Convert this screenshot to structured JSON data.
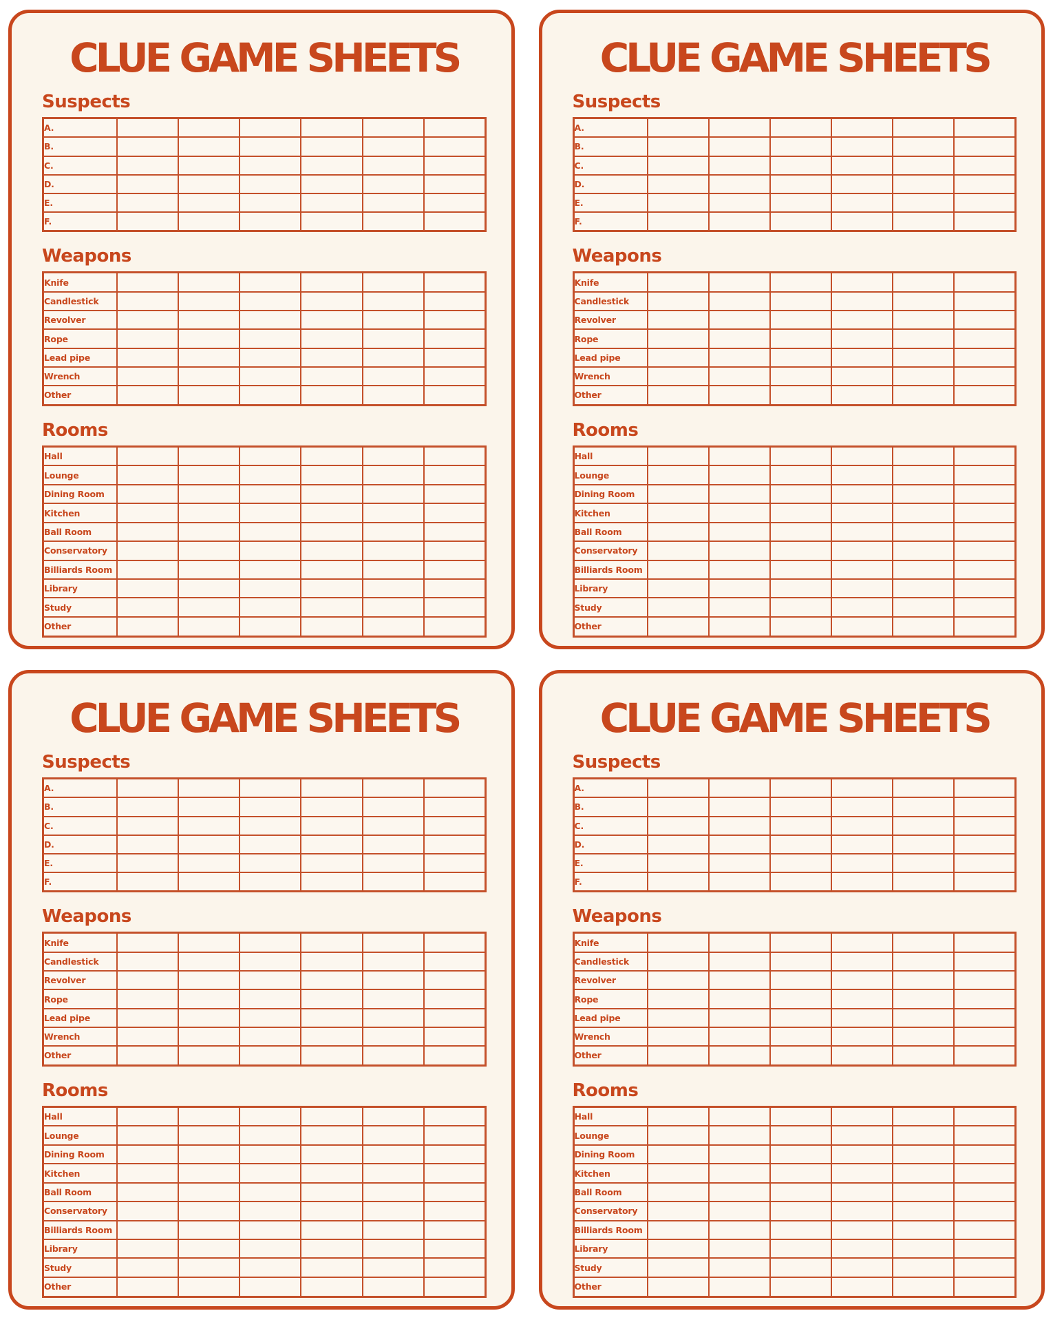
{
  "page": {
    "background_color": "#FFFFFF"
  },
  "colors": {
    "accent": "#C8471D",
    "grid_line": "#C4502A",
    "card_background": "#FBF5EB"
  },
  "sheet_count": 4,
  "sheet": {
    "title": "CLUE GAME SHEETS",
    "sections": [
      {
        "heading": "Suspects",
        "data_columns": 6,
        "rows": [
          "A.",
          "B.",
          "C.",
          "D.",
          "E.",
          "F."
        ]
      },
      {
        "heading": "Weapons",
        "data_columns": 6,
        "rows": [
          "Knife",
          "Candlestick",
          "Revolver",
          "Rope",
          "Lead pipe",
          "Wrench",
          "Other"
        ]
      },
      {
        "heading": "Rooms",
        "data_columns": 6,
        "rows": [
          "Hall",
          "Lounge",
          "Dining Room",
          "Kitchen",
          "Ball Room",
          "Conservatory",
          "Billiards Room",
          "Library",
          "Study",
          "Other"
        ]
      }
    ]
  }
}
